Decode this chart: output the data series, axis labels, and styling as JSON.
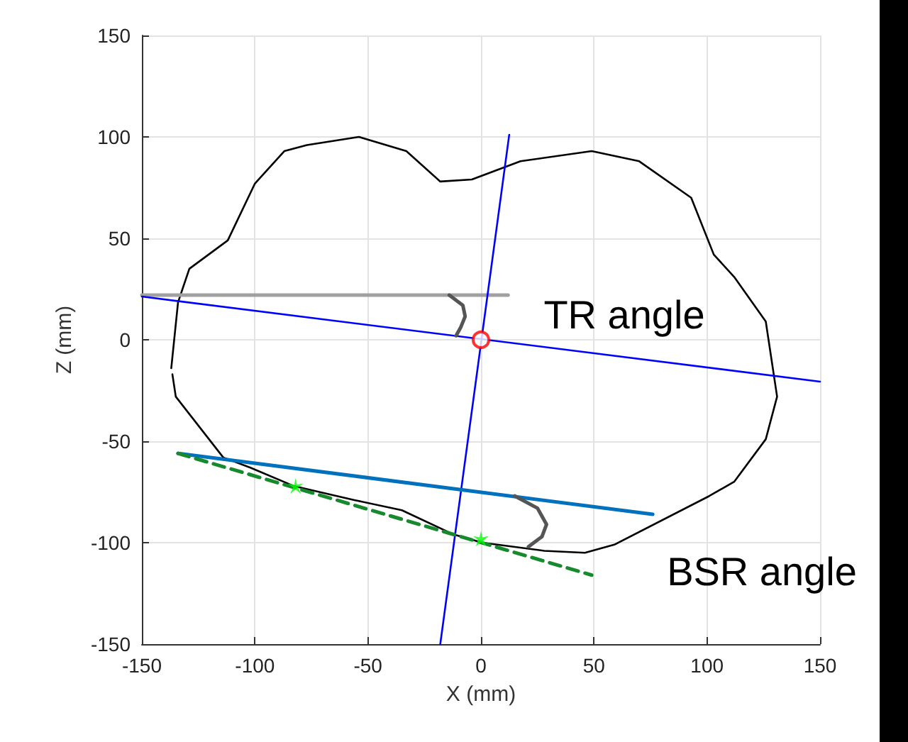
{
  "chart_data": {
    "type": "line",
    "xlabel": "X (mm)",
    "ylabel": "Z (mm)",
    "xlim": [
      -150,
      150
    ],
    "xticks": [
      -150,
      -100,
      -50,
      0,
      50,
      100,
      150
    ],
    "ylim": [
      -150,
      150
    ],
    "yticks": [
      -150,
      -100,
      -50,
      0,
      50,
      100,
      150
    ],
    "grid": true,
    "marker": "none",
    "annotations": [
      "TR angle",
      "BSR angle"
    ],
    "series": [
      {
        "color": "#000000",
        "line_style": "solid",
        "x": [
          -137,
          -134,
          -129,
          -112,
          -100,
          -87,
          -77,
          -54,
          -33,
          -18,
          -4,
          17.5,
          49,
          70,
          93,
          103,
          112,
          126,
          131,
          126,
          112,
          101,
          59,
          46,
          28,
          0.6,
          -12,
          -35,
          -56,
          -83,
          -102,
          -114,
          -135,
          -136.5
        ],
        "values": [
          -14,
          18.5,
          35,
          49,
          77,
          93,
          96,
          100,
          93,
          78,
          79,
          88,
          93,
          88,
          70,
          42,
          31,
          9,
          -28,
          -49,
          -70,
          -77,
          -101,
          -105,
          -104,
          -100,
          -96,
          -84,
          -79,
          -72,
          -63,
          -58,
          -28,
          -17
        ]
      },
      {
        "color": "#a0a0a0",
        "line_style": "solid",
        "x": [
          -150,
          12
        ],
        "values": [
          22,
          22
        ]
      },
      {
        "color": "#0000ff",
        "line_style": "solid",
        "x": [
          -150,
          150
        ],
        "values": [
          21.3,
          -20.6
        ]
      },
      {
        "color": "#0000ff",
        "line_style": "solid",
        "x": [
          12.5,
          -18
        ],
        "values": [
          101,
          -150
        ]
      },
      {
        "color": "#0072bd",
        "line_style": "solid",
        "x": [
          -134,
          76
        ],
        "values": [
          -56,
          -86
        ]
      },
      {
        "color": "#178a2e",
        "line_style": "dashed",
        "x": [
          -134,
          49
        ],
        "values": [
          -56,
          -116
        ]
      },
      {
        "color": "#555555",
        "line_style": "solid",
        "x": [
          -14,
          -8,
          -7,
          -9,
          -11
        ],
        "values": [
          22,
          17,
          11.5,
          6,
          2
        ]
      },
      {
        "color": "#555555",
        "line_style": "solid",
        "x": [
          15,
          25,
          29,
          27,
          21
        ],
        "values": [
          -77,
          -83,
          -91,
          -97,
          -102
        ]
      },
      {
        "type": "scatter",
        "marker": "circle",
        "color": "#ff0000",
        "x": [
          0
        ],
        "values": [
          0
        ]
      },
      {
        "type": "scatter",
        "marker": "star",
        "color": "#00ff00",
        "x": [
          -82,
          0
        ],
        "values": [
          -72,
          -98
        ]
      }
    ]
  }
}
